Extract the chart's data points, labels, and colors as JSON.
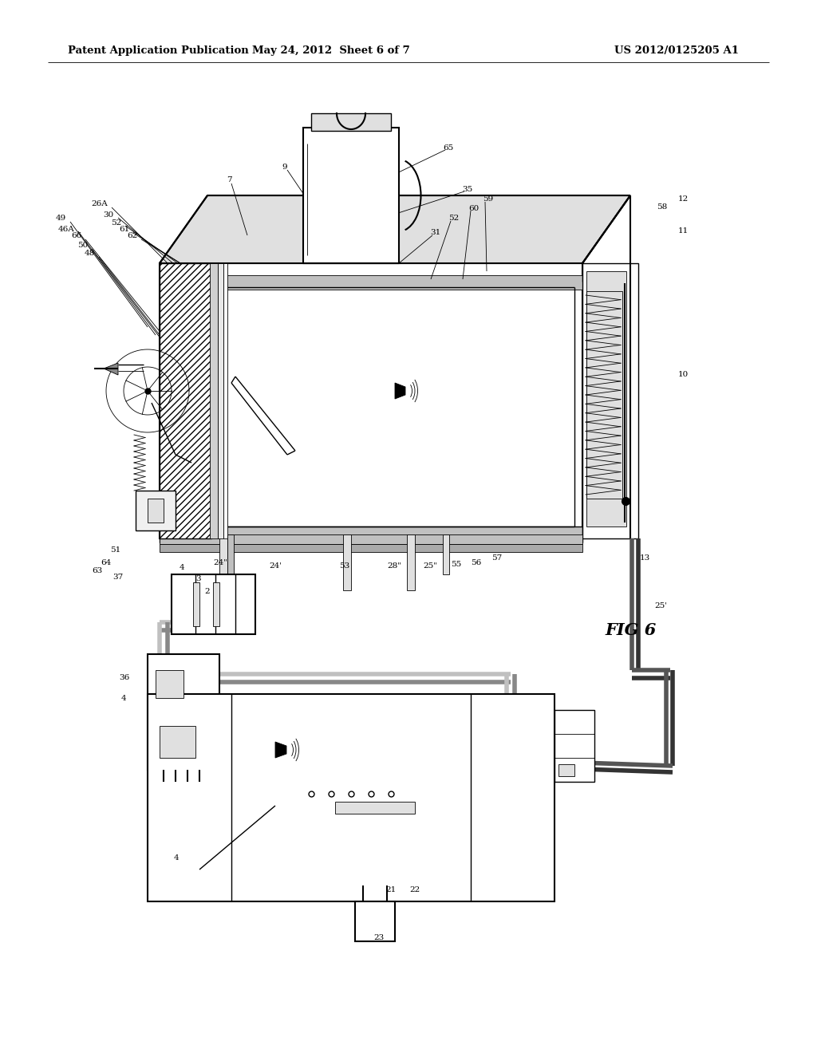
{
  "background_color": "#ffffff",
  "header_left": "Patent Application Publication",
  "header_center": "May 24, 2012  Sheet 6 of 7",
  "header_right": "US 2012/0125205 A1",
  "fig_label": "FIG 6",
  "header_fontsize": 9.5,
  "line_color": "#000000",
  "gray_fill": "#c0c0c0",
  "dark_gray": "#888888",
  "light_gray": "#e0e0e0",
  "mid_gray": "#aaaaaa"
}
